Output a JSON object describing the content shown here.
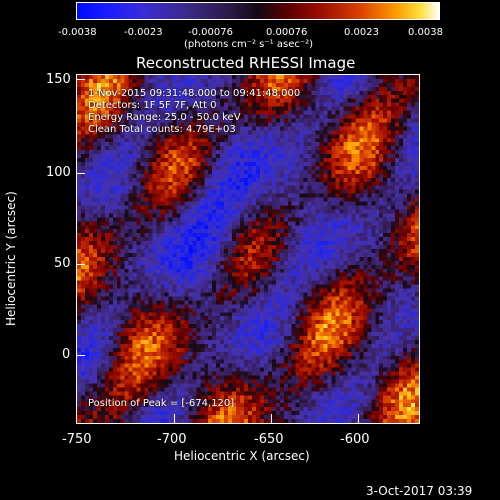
{
  "colorbar": {
    "ticks": [
      "-0.0038",
      "-0.0023",
      "-0.00076",
      "0.00076",
      "0.0023",
      "0.0038"
    ],
    "unit": "(photons cm⁻² s⁻¹ asec⁻²)"
  },
  "image": {
    "title": "Reconstructed RHESSI Image",
    "annotations": {
      "time": "1-Nov-2015 09:31:48.000 to 09:41:48.000",
      "detectors": "Detectors: 1F 5F 7F, Att 0",
      "energy": "Energy Range: 25.0 - 50.0 keV",
      "clean": "Clean     Total counts: 4.79E+03",
      "peak": "Position of Peak = [-674,120]"
    },
    "x_axis": {
      "label": "Heliocentric X (arcsec)",
      "ticks": [
        "-750",
        "-700",
        "-650",
        "-600"
      ]
    },
    "y_axis": {
      "label": "Heliocentric Y (arcsec)",
      "ticks": [
        "150",
        "100",
        "50",
        "0"
      ]
    }
  },
  "timestamp": "3-Oct-2017 03:39"
}
